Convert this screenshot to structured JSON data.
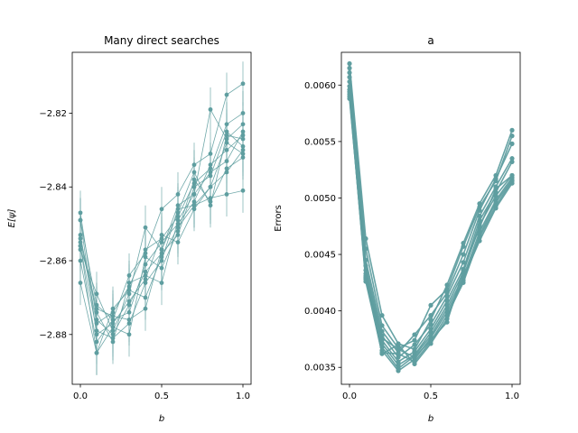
{
  "chart_data": [
    {
      "type": "line",
      "title": "Many direct searches",
      "xlabel": "b",
      "ylabel": "E[ψ]",
      "xlim": [
        -0.05,
        1.05
      ],
      "ylim": [
        -2.8935,
        -2.8035
      ],
      "xticks": [
        0.0,
        0.5,
        1.0
      ],
      "xtick_labels": [
        "0.0",
        "0.5",
        "1.0"
      ],
      "yticks": [
        -2.82,
        -2.84,
        -2.86,
        -2.88
      ],
      "ytick_labels": [
        "−2.82",
        "−2.84",
        "−2.86",
        "−2.88"
      ],
      "color": "#5f9ea0",
      "error_bars": true,
      "x": [
        0.0,
        0.1,
        0.2,
        0.3,
        0.4,
        0.5,
        0.6,
        0.7,
        0.8,
        0.9,
        1.0
      ],
      "series": [
        {
          "values": [
            -2.849,
            -2.872,
            -2.876,
            -2.864,
            -2.858,
            -2.846,
            -2.842,
            -2.834,
            -2.831,
            -2.815,
            -2.812
          ]
        },
        {
          "values": [
            -2.853,
            -2.877,
            -2.874,
            -2.867,
            -2.857,
            -2.854,
            -2.848,
            -2.839,
            -2.835,
            -2.823,
            -2.82
          ]
        },
        {
          "values": [
            -2.857,
            -2.869,
            -2.879,
            -2.869,
            -2.851,
            -2.857,
            -2.845,
            -2.842,
            -2.819,
            -2.827,
            -2.823
          ]
        },
        {
          "values": [
            -2.86,
            -2.882,
            -2.876,
            -2.874,
            -2.861,
            -2.855,
            -2.85,
            -2.844,
            -2.834,
            -2.83,
            -2.826
          ]
        },
        {
          "values": [
            -2.847,
            -2.876,
            -2.88,
            -2.872,
            -2.863,
            -2.858,
            -2.853,
            -2.84,
            -2.837,
            -2.825,
            -2.829
          ]
        },
        {
          "values": [
            -2.856,
            -2.879,
            -2.881,
            -2.877,
            -2.866,
            -2.86,
            -2.846,
            -2.845,
            -2.84,
            -2.828,
            -2.831
          ]
        },
        {
          "values": [
            -2.866,
            -2.885,
            -2.878,
            -2.88,
            -2.859,
            -2.862,
            -2.852,
            -2.838,
            -2.844,
            -2.835,
            -2.832
          ]
        },
        {
          "values": [
            -2.855,
            -2.874,
            -2.882,
            -2.866,
            -2.864,
            -2.866,
            -2.849,
            -2.842,
            -2.836,
            -2.833,
            -2.825
          ]
        },
        {
          "values": [
            -2.849,
            -2.88,
            -2.877,
            -2.871,
            -2.865,
            -2.853,
            -2.855,
            -2.846,
            -2.84,
            -2.836,
            -2.83
          ]
        },
        {
          "values": [
            -2.856,
            -2.885,
            -2.873,
            -2.868,
            -2.87,
            -2.859,
            -2.851,
            -2.845,
            -2.843,
            -2.842,
            -2.841
          ]
        },
        {
          "values": [
            -2.854,
            -2.873,
            -2.875,
            -2.876,
            -2.873,
            -2.857,
            -2.847,
            -2.836,
            -2.845,
            -2.826,
            -2.827
          ]
        }
      ],
      "error_halfwidth": 0.006
    },
    {
      "type": "line",
      "title": "a",
      "xlabel": "b",
      "ylabel": "Errors",
      "xlim": [
        -0.05,
        1.05
      ],
      "ylim": [
        0.00335,
        0.00629
      ],
      "xticks": [
        0.0,
        0.5,
        1.0
      ],
      "xtick_labels": [
        "0.0",
        "0.5",
        "1.0"
      ],
      "yticks": [
        0.0035,
        0.004,
        0.0045,
        0.005,
        0.0055,
        0.006
      ],
      "ytick_labels": [
        "0.0035",
        "0.0040",
        "0.0045",
        "0.0050",
        "0.0055",
        "0.0060"
      ],
      "color": "#5f9ea0",
      "x": [
        0.0,
        0.1,
        0.2,
        0.3,
        0.4,
        0.5,
        0.6,
        0.7,
        0.8,
        0.9,
        1.0
      ],
      "series": [
        {
          "values": [
            0.00619,
            0.00464,
            0.00396,
            0.00371,
            0.00366,
            0.00392,
            0.00423,
            0.0046,
            0.00495,
            0.0052,
            0.0056
          ]
        },
        {
          "values": [
            0.00615,
            0.00455,
            0.00387,
            0.00367,
            0.00374,
            0.00405,
            0.00419,
            0.00457,
            0.00492,
            0.00515,
            0.00555
          ]
        },
        {
          "values": [
            0.00611,
            0.00445,
            0.00382,
            0.00363,
            0.00379,
            0.00396,
            0.00416,
            0.0045,
            0.00489,
            0.00517,
            0.00548
          ]
        },
        {
          "values": [
            0.00607,
            0.0044,
            0.00378,
            0.00359,
            0.0037,
            0.00388,
            0.00413,
            0.00443,
            0.00484,
            0.0051,
            0.00535
          ]
        },
        {
          "values": [
            0.00603,
            0.00436,
            0.00374,
            0.00355,
            0.00364,
            0.00384,
            0.00409,
            0.00437,
            0.0048,
            0.00505,
            0.00532
          ]
        },
        {
          "values": [
            0.00599,
            0.00433,
            0.00371,
            0.00352,
            0.00361,
            0.00381,
            0.00405,
            0.00434,
            0.00476,
            0.00502,
            0.0052
          ]
        },
        {
          "values": [
            0.00596,
            0.0043,
            0.00368,
            0.00349,
            0.0036,
            0.00378,
            0.00402,
            0.0043,
            0.0047,
            0.00498,
            0.00518
          ]
        },
        {
          "values": [
            0.00594,
            0.00428,
            0.00365,
            0.00347,
            0.00357,
            0.00376,
            0.00399,
            0.00427,
            0.00467,
            0.00496,
            0.00516
          ]
        },
        {
          "values": [
            0.00592,
            0.00426,
            0.00363,
            0.00362,
            0.00355,
            0.00373,
            0.00396,
            0.00425,
            0.00465,
            0.00493,
            0.00515
          ]
        },
        {
          "values": [
            0.0059,
            0.00429,
            0.00362,
            0.0037,
            0.00353,
            0.00371,
            0.00393,
            0.00429,
            0.00462,
            0.00491,
            0.00513
          ]
        },
        {
          "values": [
            0.00588,
            0.00431,
            0.00376,
            0.00366,
            0.00359,
            0.00374,
            0.0039,
            0.00436,
            0.00474,
            0.00508,
            0.0052
          ]
        }
      ]
    }
  ]
}
